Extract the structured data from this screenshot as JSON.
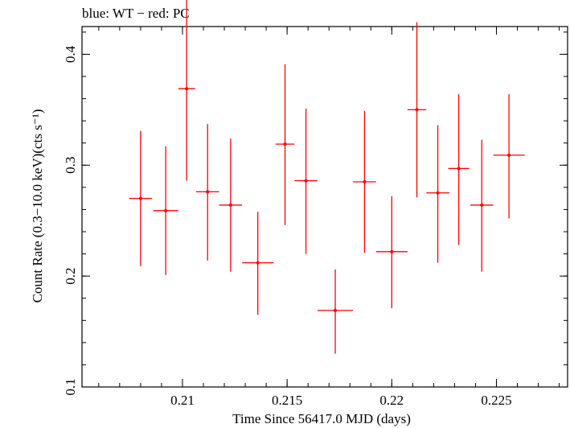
{
  "chart_data": {
    "type": "scatter",
    "title": "blue: WT − red: PC",
    "xlabel": "Time Since 56417.0 MJD (days)",
    "ylabel": "Count Rate (0.3−10.0 keV)(cts s⁻¹)",
    "xlim": [
      0.2052,
      0.2284
    ],
    "ylim": [
      0.1,
      0.425
    ],
    "x_major_ticks": [
      0.21,
      0.215,
      0.22,
      0.225
    ],
    "x_tick_labels": [
      "0.21",
      "0.215",
      "0.22",
      "0.225"
    ],
    "x_minor_step": 0.001,
    "y_major_ticks": [
      0.1,
      0.2,
      0.3,
      0.4
    ],
    "y_tick_labels": [
      "0.1",
      "0.2",
      "0.3",
      "0.4"
    ],
    "y_minor_step": 0.02,
    "grid": false,
    "series": [
      {
        "color": "#ff0000",
        "points": [
          {
            "x": 0.208,
            "xerr": 0.00055,
            "y": 0.27,
            "ylo": 0.209,
            "yhi": 0.331
          },
          {
            "x": 0.2092,
            "xerr": 0.0006,
            "y": 0.259,
            "ylo": 0.201,
            "yhi": 0.317
          },
          {
            "x": 0.2102,
            "xerr": 0.0004,
            "y": 0.369,
            "ylo": 0.286,
            "yhi": 0.451
          },
          {
            "x": 0.2112,
            "xerr": 0.00055,
            "y": 0.276,
            "ylo": 0.214,
            "yhi": 0.337
          },
          {
            "x": 0.2123,
            "xerr": 0.00055,
            "y": 0.264,
            "ylo": 0.204,
            "yhi": 0.324
          },
          {
            "x": 0.2136,
            "xerr": 0.00075,
            "y": 0.212,
            "ylo": 0.165,
            "yhi": 0.258
          },
          {
            "x": 0.2149,
            "xerr": 0.00045,
            "y": 0.319,
            "ylo": 0.246,
            "yhi": 0.391
          },
          {
            "x": 0.2159,
            "xerr": 0.00055,
            "y": 0.286,
            "ylo": 0.22,
            "yhi": 0.351
          },
          {
            "x": 0.2173,
            "xerr": 0.00085,
            "y": 0.169,
            "ylo": 0.13,
            "yhi": 0.206
          },
          {
            "x": 0.2187,
            "xerr": 0.00055,
            "y": 0.285,
            "ylo": 0.221,
            "yhi": 0.349
          },
          {
            "x": 0.22,
            "xerr": 0.00075,
            "y": 0.222,
            "ylo": 0.171,
            "yhi": 0.272
          },
          {
            "x": 0.2212,
            "xerr": 0.00045,
            "y": 0.35,
            "ylo": 0.271,
            "yhi": 0.429
          },
          {
            "x": 0.2222,
            "xerr": 0.00055,
            "y": 0.275,
            "ylo": 0.212,
            "yhi": 0.336
          },
          {
            "x": 0.2232,
            "xerr": 0.0005,
            "y": 0.297,
            "ylo": 0.228,
            "yhi": 0.364
          },
          {
            "x": 0.2243,
            "xerr": 0.00055,
            "y": 0.264,
            "ylo": 0.204,
            "yhi": 0.323
          },
          {
            "x": 0.2256,
            "xerr": 0.00075,
            "y": 0.309,
            "ylo": 0.252,
            "yhi": 0.364
          }
        ]
      }
    ]
  }
}
